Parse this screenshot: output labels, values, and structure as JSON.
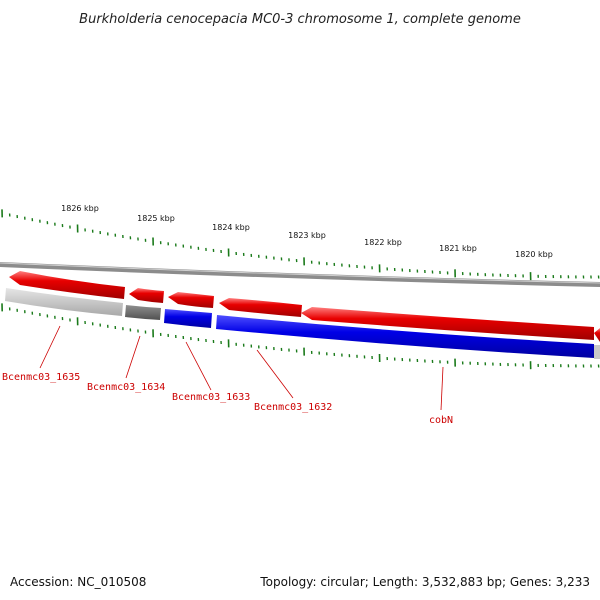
{
  "title": "Burkholderia cenocepacia MC0-3 chromosome 1, complete genome",
  "footer": {
    "accession": "Accession: NC_010508",
    "summary": "Topology: circular; Length: 3,532,883 bp; Genes: 3,233"
  },
  "scale": {
    "labels": [
      "1826 kbp",
      "1825 kbp",
      "1824 kbp",
      "1823 kbp",
      "1822 kbp",
      "1821 kbp",
      "1820 kbp"
    ]
  },
  "genes": {
    "forward": [
      {
        "label": "Bcenmc03_1635",
        "color": "#e80000"
      },
      {
        "label": "Bcenmc03_1634",
        "color": "#e80000"
      },
      {
        "label": "Bcenmc03_1633",
        "color": "#e80000"
      },
      {
        "label": "Bcenmc03_1632",
        "color": "#e80000"
      },
      {
        "label": "cobN",
        "color": "#e80000"
      }
    ],
    "reverse": [
      {
        "name": "light-grey",
        "color": "#c8c8c8"
      },
      {
        "name": "dark-grey",
        "color": "#6e6e6e"
      },
      {
        "name": "blue-1",
        "color": "#0000e6"
      },
      {
        "name": "blue-2",
        "color": "#0000e6"
      }
    ]
  },
  "colors": {
    "backbone": "#8c8c8c",
    "tick": "#1a7a1a",
    "label_line": "#cc0000"
  }
}
